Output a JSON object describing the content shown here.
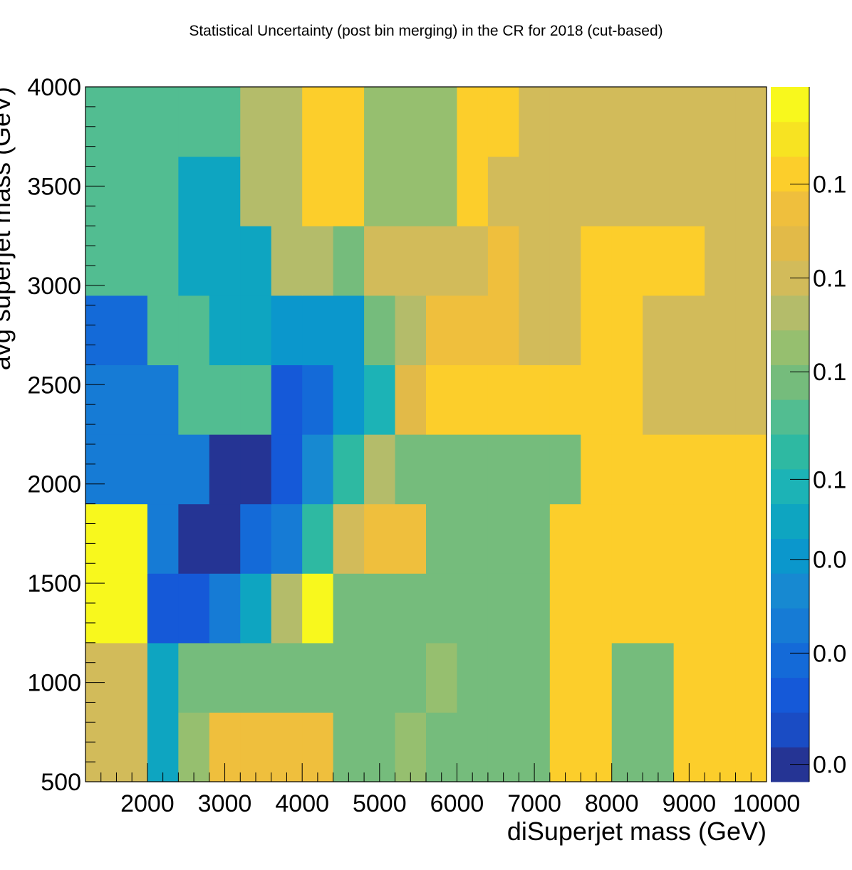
{
  "chart_data": {
    "type": "heatmap",
    "title": "Statistical Uncertainty (post bin merging) in the CR for 2018 (cut-based)",
    "xlabel": "diSuperjet mass (GeV)",
    "ylabel": "avg superjet mass (GeV)",
    "xlim": [
      1200,
      10000
    ],
    "ylim": [
      500,
      4000
    ],
    "x_ticks": [
      "2000",
      "3000",
      "4000",
      "5000",
      "6000",
      "7000",
      "8000",
      "9000",
      "10000"
    ],
    "x_tick_values": [
      2000,
      3000,
      4000,
      5000,
      6000,
      7000,
      8000,
      9000,
      10000
    ],
    "y_ticks": [
      "500",
      "1000",
      "1500",
      "2000",
      "2500",
      "3000",
      "3500",
      "4000"
    ],
    "y_tick_values": [
      500,
      1000,
      1500,
      2000,
      2500,
      3000,
      3500,
      4000
    ],
    "x_bin_edges": [
      1200,
      2000,
      2400,
      2800,
      3200,
      3600,
      4000,
      4400,
      4800,
      5200,
      5600,
      6000,
      6400,
      6800,
      7200,
      7600,
      8000,
      8400,
      8800,
      9200,
      9600,
      10000
    ],
    "y_bin_edges": [
      500,
      850,
      1200,
      1550,
      1900,
      2250,
      2600,
      2950,
      3300,
      3650,
      4000
    ],
    "z_levels": 20,
    "z_labels": [
      "0.0",
      "0.0",
      "0.0",
      "0.1",
      "0.1",
      "0.1",
      "0.1"
    ],
    "z_label_levels": [
      0.5,
      3.7,
      6.4,
      8.7,
      11.8,
      14.5,
      17.2
    ],
    "palette": [
      "#253494",
      "#1a4cc4",
      "#1559d8",
      "#146ad8",
      "#167bd5",
      "#1789d1",
      "#0b97cc",
      "#0ea5c1",
      "#1cb3b6",
      "#2eb9a2",
      "#52bd91",
      "#75bc7c",
      "#96bf6f",
      "#b4bc6a",
      "#d2bb5a",
      "#e2ba48",
      "#efbf3d",
      "#fcce2b",
      "#f7e322",
      "#f8f81d"
    ],
    "values": [
      [
        14,
        7,
        12,
        16,
        16,
        16,
        16,
        11,
        11,
        12,
        11,
        11,
        11,
        11,
        17,
        17,
        11,
        11,
        17,
        17,
        17
      ],
      [
        14,
        7,
        11,
        11,
        11,
        11,
        11,
        11,
        11,
        11,
        12,
        11,
        11,
        11,
        17,
        17,
        11,
        11,
        17,
        17,
        17
      ],
      [
        19,
        2,
        2,
        4,
        7,
        13,
        19,
        11,
        11,
        11,
        11,
        11,
        11,
        11,
        17,
        17,
        17,
        17,
        17,
        17,
        17
      ],
      [
        19,
        4,
        0,
        0,
        3,
        4,
        9,
        14,
        16,
        16,
        11,
        11,
        11,
        11,
        17,
        17,
        17,
        17,
        17,
        17,
        17
      ],
      [
        4,
        4,
        4,
        0,
        0,
        2,
        5,
        9,
        13,
        11,
        11,
        11,
        11,
        11,
        11,
        17,
        17,
        17,
        17,
        17,
        17
      ],
      [
        4,
        4,
        10,
        10,
        10,
        2,
        3,
        6,
        8,
        15,
        17,
        17,
        17,
        17,
        17,
        17,
        17,
        14,
        14,
        14,
        14
      ],
      [
        3,
        10,
        10,
        7,
        7,
        6,
        6,
        6,
        11,
        13,
        16,
        16,
        16,
        14,
        14,
        17,
        17,
        14,
        14,
        14,
        14
      ],
      [
        10,
        10,
        7,
        7,
        7,
        13,
        13,
        11,
        14,
        14,
        14,
        14,
        16,
        14,
        14,
        17,
        17,
        17,
        17,
        14,
        14
      ],
      [
        10,
        10,
        7,
        7,
        13,
        13,
        17,
        17,
        12,
        12,
        12,
        17,
        14,
        14,
        14,
        14,
        14,
        14,
        14,
        14,
        14
      ],
      [
        10,
        10,
        10,
        10,
        13,
        13,
        17,
        17,
        12,
        12,
        12,
        17,
        17,
        14,
        14,
        14,
        14,
        14,
        14,
        14,
        14
      ]
    ]
  }
}
